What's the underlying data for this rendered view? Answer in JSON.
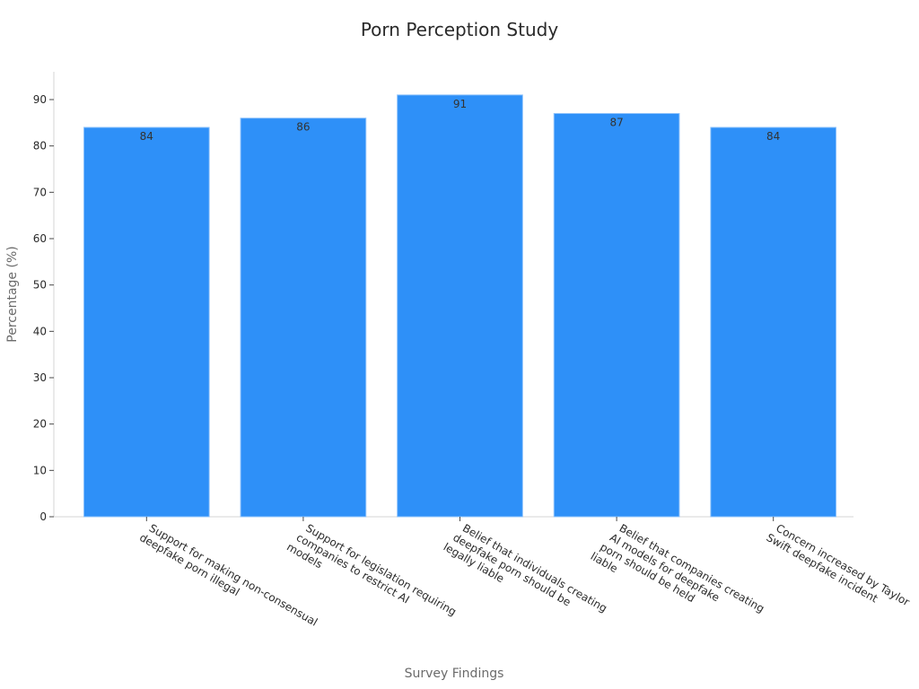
{
  "chart_data": {
    "type": "bar",
    "title": "Porn Perception Study",
    "xlabel": "Survey Findings",
    "ylabel": "Percentage (%)",
    "ylim": [
      0,
      96
    ],
    "yticks": [
      0,
      10,
      20,
      30,
      40,
      50,
      60,
      70,
      80,
      90
    ],
    "grid": false,
    "legend": "none",
    "bar_color": "#2e90f8",
    "categories": [
      [
        "Support for making non-consensual",
        "deepfake porn illegal"
      ],
      [
        "Support for legislation requiring",
        "companies to restrict AI",
        "models"
      ],
      [
        "Belief that individuals creating",
        "deepfake porn should be",
        "legally liable"
      ],
      [
        "Belief that companies creating",
        "AI models for deepfake",
        "porn should be held",
        "liable"
      ],
      [
        "Concern increased by Taylor",
        "Swift deepfake incident"
      ]
    ],
    "values": [
      84,
      86,
      91,
      87,
      84
    ],
    "data_labels": [
      "84",
      "86",
      "91",
      "87",
      "84"
    ]
  }
}
